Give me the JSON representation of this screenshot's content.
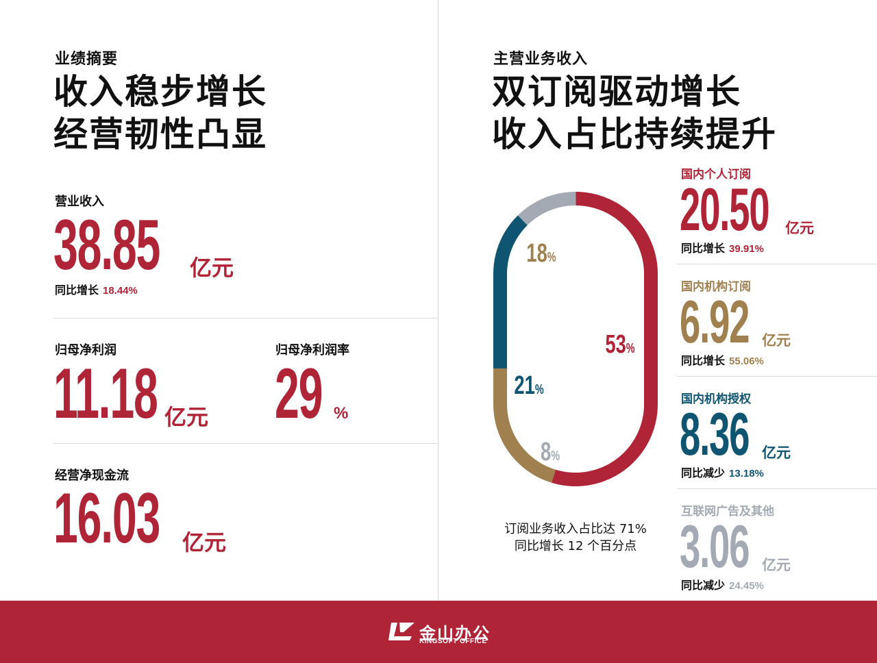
{
  "left": {
    "kicker": "业绩摘要",
    "headline": [
      "收入稳步增长",
      "经营韧性凸显"
    ],
    "revenue": {
      "label": "营业收入",
      "value": "38.85",
      "unit": "亿元",
      "yoy_label": "同比增长",
      "yoy_value": "18.44%"
    },
    "net_profit": {
      "label": "归母净利润",
      "value": "11.18",
      "unit": "亿元"
    },
    "net_margin": {
      "label": "归母净利润率",
      "value": "29",
      "unit": "%"
    },
    "cash_flow": {
      "label": "经营净现金流",
      "value": "16.03",
      "unit": "亿元"
    }
  },
  "right": {
    "kicker": "主营业务收入",
    "headline": [
      "双订阅驱动增长",
      "收入占比持续提升"
    ],
    "segments": [
      {
        "name": "国内个人订阅",
        "value": "20.50",
        "unit": "亿元",
        "yoy_label": "同比增长",
        "yoy_value": "39.91%",
        "color": "#b02437"
      },
      {
        "name": "国内机构订阅",
        "value": "6.92",
        "unit": "亿元",
        "yoy_label": "同比增长",
        "yoy_value": "55.06%",
        "color": "#a0804f"
      },
      {
        "name": "国内机构授权",
        "value": "8.36",
        "unit": "亿元",
        "yoy_label": "同比减少",
        "yoy_value": "13.18%",
        "color": "#0f5572"
      },
      {
        "name": "互联网广告及其他",
        "value": "3.06",
        "unit": "亿元",
        "yoy_label": "同比减少",
        "yoy_value": "24.45%",
        "color": "#a3aab3"
      }
    ],
    "caption": [
      "订阅业务收入占比达 71%",
      "同比增长 12 个百分点"
    ]
  },
  "chart_data": {
    "type": "pie",
    "labels": [
      "国内个人订阅",
      "国内机构订阅",
      "国内机构授权",
      "互联网广告及其他"
    ],
    "values": [
      53,
      18,
      21,
      8
    ],
    "display": [
      "53",
      "18",
      "21",
      "8"
    ],
    "unit": "%",
    "colors": [
      "#b02437",
      "#a0804f",
      "#0f5572",
      "#a3aab3"
    ]
  },
  "footer": {
    "logo_cn": "金山办公",
    "logo_en": "KINGSOFT OFFICE"
  }
}
